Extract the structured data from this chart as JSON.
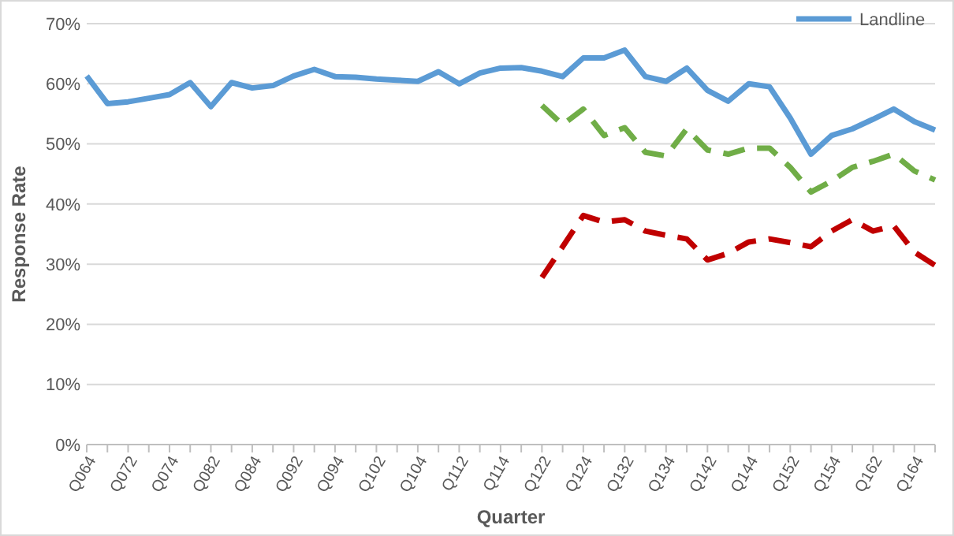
{
  "chart_data": {
    "type": "line",
    "xlabel": "Quarter",
    "ylabel": "Response Rate",
    "categories": [
      "Q064",
      null,
      "Q072",
      null,
      "Q074",
      null,
      "Q082",
      null,
      "Q084",
      null,
      "Q092",
      null,
      "Q094",
      null,
      "Q102",
      null,
      "Q104",
      null,
      "Q112",
      null,
      "Q114",
      null,
      "Q122",
      null,
      "Q124",
      null,
      "Q132",
      null,
      "Q134",
      null,
      "Q142",
      null,
      "Q144",
      null,
      "Q152",
      null,
      "Q154",
      null,
      "Q162",
      null,
      "Q164",
      null
    ],
    "series": [
      {
        "name": "Landline",
        "color": "#5b9bd5",
        "line_style": "solid",
        "values": [
          61.3,
          56.7,
          57.0,
          57.6,
          58.2,
          60.2,
          56.2,
          60.2,
          59.3,
          59.7,
          61.3,
          62.4,
          61.2,
          61.1,
          60.8,
          60.6,
          60.4,
          62.0,
          60.0,
          61.8,
          62.6,
          62.7,
          62.1,
          61.2,
          64.3,
          64.3,
          65.6,
          61.2,
          60.4,
          62.6,
          58.9,
          57.1,
          60.0,
          59.5,
          54.3,
          48.3,
          51.4,
          52.5,
          54.1,
          55.8,
          53.7,
          52.3
        ]
      },
      {
        "color": "#70ad47",
        "line_style": "dashed",
        "values": [
          null,
          null,
          null,
          null,
          null,
          null,
          null,
          null,
          null,
          null,
          null,
          null,
          null,
          null,
          null,
          null,
          null,
          null,
          null,
          null,
          null,
          null,
          56.4,
          53.2,
          55.8,
          51.4,
          52.7,
          48.6,
          48.0,
          52.5,
          49.0,
          48.3,
          49.3,
          49.3,
          46.1,
          42.0,
          43.8,
          46.1,
          47.1,
          48.3,
          45.5,
          44.0
        ]
      },
      {
        "color": "#c00000",
        "line_style": "dashed",
        "values": [
          null,
          null,
          null,
          null,
          null,
          null,
          null,
          null,
          null,
          null,
          null,
          null,
          null,
          null,
          null,
          null,
          null,
          null,
          null,
          null,
          null,
          null,
          27.8,
          32.9,
          38.1,
          37.0,
          37.4,
          35.5,
          34.8,
          34.2,
          30.7,
          31.8,
          33.7,
          34.2,
          33.6,
          32.9,
          35.5,
          37.4,
          35.5,
          36.4,
          32.0,
          29.8
        ]
      }
    ],
    "ylim": [
      0,
      70
    ],
    "yticks": [
      {
        "value": 0,
        "label": "0%"
      },
      {
        "value": 10,
        "label": "10%"
      },
      {
        "value": 20,
        "label": "20%"
      },
      {
        "value": 30,
        "label": "30%"
      },
      {
        "value": 40,
        "label": "40%"
      },
      {
        "value": 50,
        "label": "50%"
      },
      {
        "value": 60,
        "label": "60%"
      },
      {
        "value": 70,
        "label": "70%"
      }
    ],
    "grid": "y",
    "legend": "top right"
  }
}
